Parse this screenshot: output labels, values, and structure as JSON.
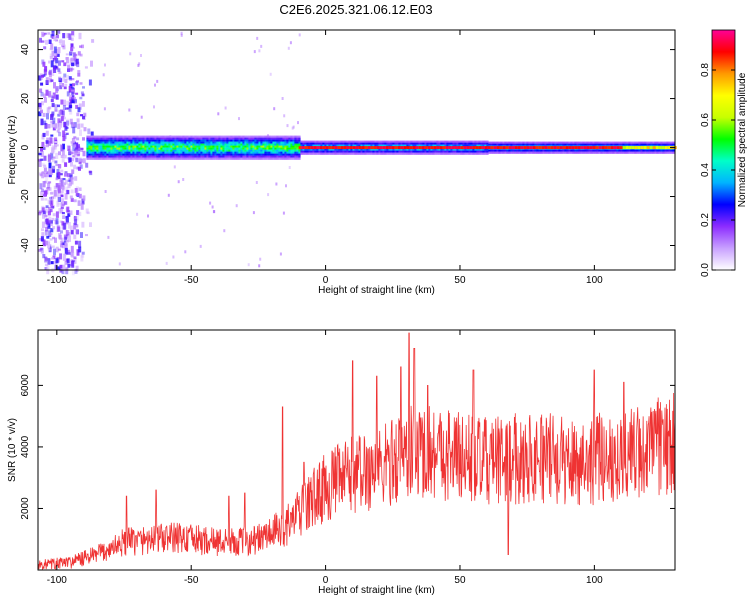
{
  "figure": {
    "title": "C2E6.2025.321.06.12.E03"
  },
  "chart_data": [
    {
      "type": "heatmap",
      "xlabel": "Height of straight line (km)",
      "ylabel": "Frequency (Hz)",
      "xlim": [
        -107,
        130
      ],
      "ylim": [
        -50,
        48
      ],
      "xticks": [
        -100,
        -50,
        0,
        50,
        100
      ],
      "yticks": [
        -40,
        -20,
        0,
        20,
        40
      ],
      "colorbar": {
        "label": "Normalized spectral amplitude",
        "range": [
          0,
          0.96
        ],
        "ticks": [
          0.0,
          0.2,
          0.4,
          0.6,
          0.8
        ],
        "tick_labels": [
          "0.0",
          "0.2",
          "0.4",
          "0.6",
          "0.8"
        ],
        "colors": [
          "#ffffff",
          "#c8a0ff",
          "#8c2cff",
          "#0000ff",
          "#00b4ff",
          "#00ffc8",
          "#00ff00",
          "#c8ff00",
          "#ffff00",
          "#ff9900",
          "#ff0000",
          "#ff0096"
        ]
      },
      "features": {
        "band_center_hz": 0,
        "noise_region_km": [
          -107,
          -87
        ],
        "bright_line_from_km": -10,
        "peak_amplitude_range_km": [
          -10,
          110
        ]
      }
    },
    {
      "type": "line",
      "xlabel": "Height of straight line (km)",
      "ylabel": "SNR (10 * v/v)",
      "xlim": [
        -107,
        130
      ],
      "ylim": [
        0,
        7800
      ],
      "xticks": [
        -100,
        -50,
        0,
        50,
        100
      ],
      "yticks": [
        2000,
        4000,
        6000
      ],
      "line_color": "#ef3333",
      "trend_x": [
        -107,
        -95,
        -85,
        -75,
        -65,
        -55,
        -45,
        -35,
        -25,
        -15,
        -10,
        -5,
        0,
        10,
        20,
        30,
        40,
        50,
        60,
        70,
        80,
        90,
        100,
        110,
        120,
        130
      ],
      "trend_y": [
        150,
        250,
        500,
        900,
        1000,
        1050,
        950,
        900,
        1000,
        1400,
        1800,
        2300,
        2700,
        3100,
        3300,
        3800,
        3900,
        3700,
        3500,
        3600,
        3700,
        3500,
        3600,
        3700,
        3900,
        4100
      ],
      "spike_x": [
        -74,
        -63,
        -36,
        -30,
        -16,
        -8,
        10,
        19,
        28,
        31,
        33,
        38,
        55,
        68,
        100,
        111
      ],
      "spike_y": [
        2400,
        2600,
        2400,
        2500,
        5300,
        3500,
        6800,
        6300,
        6600,
        7700,
        7200,
        6000,
        6500,
        500,
        6500,
        6100
      ]
    }
  ]
}
